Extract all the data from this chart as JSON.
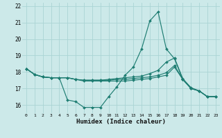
{
  "xlabel": "Humidex (Indice chaleur)",
  "bg_color": "#cce9e9",
  "grid_color": "#aad4d4",
  "line_color": "#1e7d72",
  "xlim_min": -0.5,
  "xlim_max": 23.5,
  "ylim_min": 15.5,
  "ylim_max": 22.2,
  "xticks": [
    0,
    1,
    2,
    3,
    4,
    5,
    6,
    7,
    8,
    9,
    10,
    11,
    12,
    13,
    14,
    15,
    16,
    17,
    18,
    19,
    20,
    21,
    22,
    23
  ],
  "yticks": [
    16,
    17,
    18,
    19,
    20,
    21,
    22
  ],
  "lines": [
    [
      18.2,
      17.85,
      17.7,
      17.65,
      17.65,
      16.3,
      16.2,
      15.85,
      15.85,
      15.85,
      16.5,
      17.1,
      17.8,
      18.3,
      19.4,
      21.1,
      21.65,
      19.4,
      18.8,
      17.55,
      17.0,
      16.85,
      16.5,
      16.5
    ],
    [
      18.2,
      17.85,
      17.7,
      17.65,
      17.65,
      17.65,
      17.55,
      17.5,
      17.5,
      17.5,
      17.55,
      17.6,
      17.65,
      17.7,
      17.75,
      17.9,
      18.1,
      18.6,
      18.85,
      17.6,
      17.05,
      16.85,
      16.5,
      16.5
    ],
    [
      18.2,
      17.85,
      17.7,
      17.65,
      17.65,
      17.65,
      17.55,
      17.5,
      17.5,
      17.5,
      17.5,
      17.55,
      17.55,
      17.6,
      17.65,
      17.7,
      17.8,
      17.95,
      18.4,
      17.55,
      17.0,
      16.85,
      16.5,
      16.5
    ],
    [
      18.2,
      17.85,
      17.7,
      17.65,
      17.65,
      17.65,
      17.55,
      17.45,
      17.45,
      17.45,
      17.45,
      17.45,
      17.45,
      17.5,
      17.55,
      17.6,
      17.7,
      17.8,
      18.3,
      17.55,
      17.0,
      16.85,
      16.5,
      16.5
    ]
  ]
}
